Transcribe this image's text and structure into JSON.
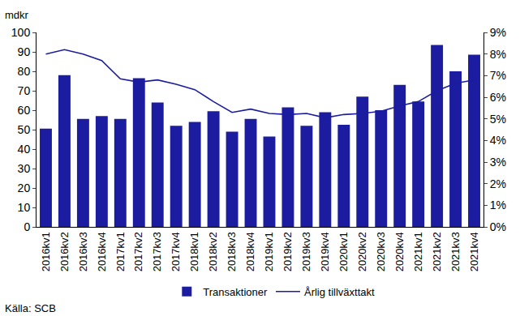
{
  "chart_data": {
    "type": "bar",
    "ylabel": "mdkr",
    "source": "Källa: SCB",
    "categories": [
      "2016kv1",
      "2016kv2",
      "2016kv3",
      "2016kv4",
      "2017kv1",
      "2017kv2",
      "2017kv3",
      "2017kv4",
      "2018kv1",
      "2018kv2",
      "2018kv3",
      "2018kv4",
      "2019kv1",
      "2019kv2",
      "2019kv3",
      "2019kv4",
      "2020kv1",
      "2020kv2",
      "2020kv3",
      "2020kv4",
      "2021kv1",
      "2021kv2",
      "2021kv3",
      "2021kv4"
    ],
    "series": [
      {
        "name": "Transaktioner",
        "type": "bar",
        "color": "#1c1ca0",
        "values": [
          50.5,
          78,
          55.5,
          57,
          55.5,
          76.5,
          64,
          52,
          54,
          59.5,
          49,
          55.5,
          46.5,
          61.5,
          52,
          59,
          52.5,
          67,
          60,
          73,
          64.5,
          93.5,
          80,
          88.5
        ]
      },
      {
        "name": "Årlig tillväxttakt",
        "type": "line",
        "axis": "y2",
        "color": "#1c1ca0",
        "values": [
          8.0,
          8.2,
          8.0,
          7.7,
          6.85,
          6.7,
          6.8,
          6.6,
          6.35,
          5.8,
          5.3,
          5.45,
          5.25,
          5.2,
          5.25,
          5.05,
          5.2,
          5.25,
          5.35,
          5.6,
          5.8,
          6.3,
          6.65,
          6.8
        ]
      }
    ],
    "ylim": [
      0,
      100
    ],
    "yticks": [
      0,
      10,
      20,
      30,
      40,
      50,
      60,
      70,
      80,
      90,
      100
    ],
    "y2lim": [
      0,
      9
    ],
    "y2ticks": [
      {
        "value": 0,
        "label": "0%"
      },
      {
        "value": 1,
        "label": "1%"
      },
      {
        "value": 2,
        "label": "2%"
      },
      {
        "value": 3,
        "label": "3%"
      },
      {
        "value": 4,
        "label": "4%"
      },
      {
        "value": 5,
        "label": "5%"
      },
      {
        "value": 6,
        "label": "6%"
      },
      {
        "value": 7,
        "label": "7%"
      },
      {
        "value": 8,
        "label": "8%"
      },
      {
        "value": 9,
        "label": "9%"
      }
    ],
    "grid": false,
    "legend": "bottom"
  }
}
